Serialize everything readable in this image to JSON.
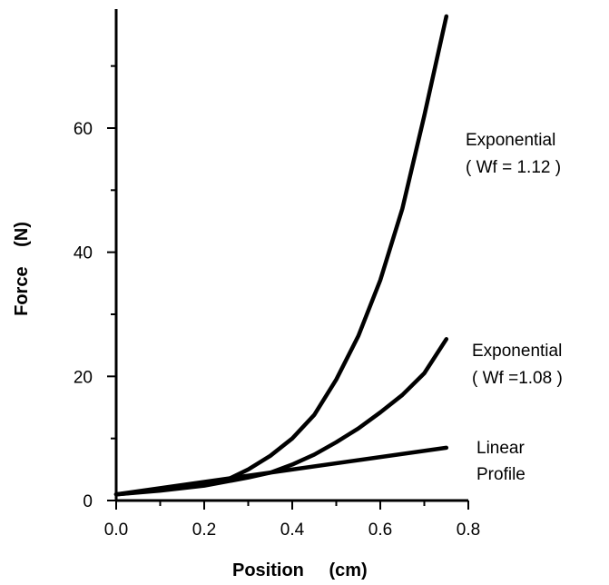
{
  "chart_data": {
    "type": "line",
    "xlabel": "Position",
    "xunit": "(cm)",
    "ylabel": "Force",
    "yunit": "(N)",
    "xlim": [
      0,
      0.8
    ],
    "ylim": [
      0,
      78
    ],
    "x_ticks": [
      "0.0",
      "0.2",
      "0.4",
      "0.6",
      "0.8"
    ],
    "x_tick_values": [
      0.0,
      0.2,
      0.4,
      0.6,
      0.8
    ],
    "y_ticks": [
      "0",
      "20",
      "40",
      "60"
    ],
    "y_tick_values": [
      0,
      20,
      40,
      60
    ],
    "grid": false,
    "series": [
      {
        "label_lines": [
          "Exponential",
          "( Wf = 1.12 )"
        ],
        "x": [
          0.0,
          0.1,
          0.2,
          0.25,
          0.3,
          0.35,
          0.4,
          0.45,
          0.5,
          0.55,
          0.6,
          0.65,
          0.7,
          0.75
        ],
        "y": [
          1.0,
          1.7,
          2.5,
          3.3,
          5.0,
          7.2,
          10.0,
          13.8,
          19.5,
          26.5,
          35.5,
          47.0,
          62.0,
          78.0
        ]
      },
      {
        "label_lines": [
          "Exponential",
          "( Wf =1.08 )"
        ],
        "x": [
          0.0,
          0.1,
          0.2,
          0.3,
          0.35,
          0.4,
          0.45,
          0.5,
          0.55,
          0.6,
          0.65,
          0.7,
          0.75
        ],
        "y": [
          1.0,
          1.6,
          2.4,
          3.7,
          4.5,
          5.8,
          7.4,
          9.4,
          11.6,
          14.2,
          17.0,
          20.5,
          26.0
        ]
      },
      {
        "label_lines": [
          "Linear",
          "Profile"
        ],
        "x": [
          0.0,
          0.75
        ],
        "y": [
          1.0,
          8.5
        ]
      }
    ]
  }
}
